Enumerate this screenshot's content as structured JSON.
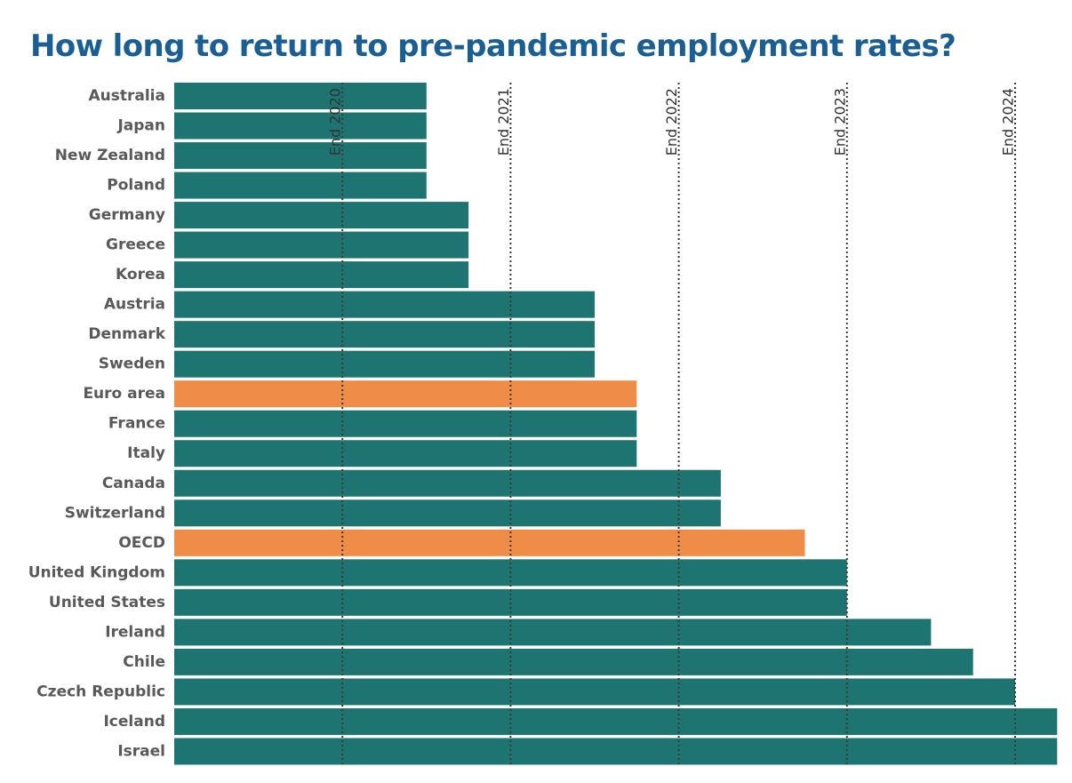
{
  "title": "How long to return to pre-pandemic employment rates?",
  "colors": {
    "title": "#1a5f94",
    "bar": "#1d7471",
    "highlight": "#ef8c48",
    "label": "#595959",
    "reference_line": "#3a3a3a"
  },
  "chart_data": {
    "type": "bar",
    "orientation": "horizontal",
    "title": "How long to return to pre-pandemic employment rates?",
    "xlabel": "",
    "ylabel": "",
    "x_unit": "years after end 2019",
    "xlim": [
      0,
      5.25
    ],
    "grid": false,
    "legend": "none",
    "categories": [
      "Australia",
      "Japan",
      "New Zealand",
      "Poland",
      "Germany",
      "Greece",
      "Korea",
      "Austria",
      "Denmark",
      "Sweden",
      "Euro area",
      "France",
      "Italy",
      "Canada",
      "Switzerland",
      "OECD",
      "United Kingdom",
      "United States",
      "Ireland",
      "Chile",
      "Czech Republic",
      "Iceland",
      "Israel"
    ],
    "values": [
      1.5,
      1.5,
      1.5,
      1.5,
      1.75,
      1.75,
      1.75,
      2.5,
      2.5,
      2.5,
      2.75,
      2.75,
      2.75,
      3.25,
      3.25,
      3.75,
      4.0,
      4.0,
      4.5,
      4.75,
      5.0,
      5.25,
      5.25
    ],
    "highlighted": [
      "Euro area",
      "OECD"
    ],
    "reference_lines": [
      {
        "label": "End 2020",
        "value": 1
      },
      {
        "label": "End 2021",
        "value": 2
      },
      {
        "label": "End 2022",
        "value": 3
      },
      {
        "label": "End 2023",
        "value": 4
      },
      {
        "label": "End 2024",
        "value": 5
      }
    ]
  }
}
